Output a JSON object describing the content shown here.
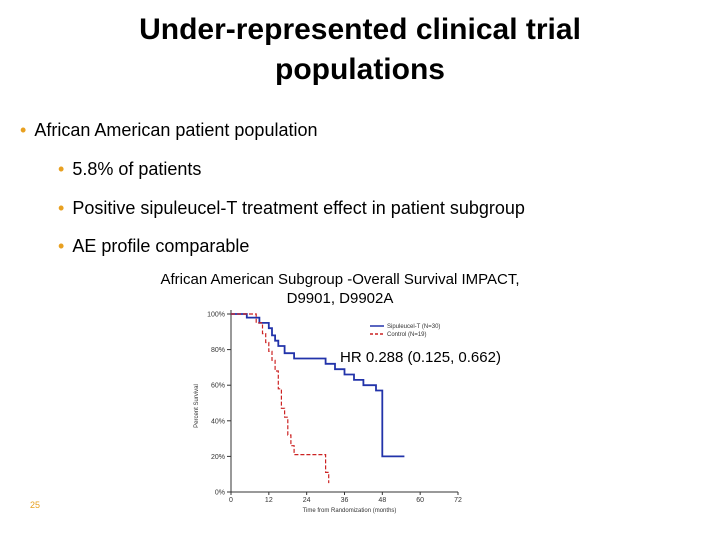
{
  "slide": {
    "title": "Under-represented clinical trial populations",
    "bullets": [
      "African American patient population",
      "5.8% of patients",
      "Positive sipuleucel-T treatment effect in patient subgroup",
      "AE profile comparable"
    ],
    "page_number": "25"
  },
  "chart_data": {
    "type": "line",
    "title": "African American Subgroup -Overall Survival IMPACT, D9901, D9902A",
    "annotation": "HR 0.288 (0.125, 0.662)",
    "xlabel": "Time from Randomization (months)",
    "ylabel": "Percent Survival",
    "xlim": [
      0,
      72
    ],
    "ylim": [
      0,
      100
    ],
    "x_ticks": [
      "0",
      "12",
      "24",
      "36",
      "48",
      "60",
      "72"
    ],
    "y_ticks": [
      "100%",
      "80%",
      "60%",
      "40%",
      "20%",
      "0%"
    ],
    "legend_position": "top-right",
    "series": [
      {
        "name": "Sipuleucel-T (N=30)",
        "color": "#2233aa",
        "style": "solid",
        "points": [
          [
            0,
            100
          ],
          [
            5,
            100
          ],
          [
            5,
            98
          ],
          [
            9,
            98
          ],
          [
            9,
            95
          ],
          [
            12,
            95
          ],
          [
            12,
            92
          ],
          [
            13,
            92
          ],
          [
            13,
            88
          ],
          [
            14,
            88
          ],
          [
            14,
            85
          ],
          [
            15,
            85
          ],
          [
            15,
            82
          ],
          [
            17,
            82
          ],
          [
            17,
            78
          ],
          [
            20,
            78
          ],
          [
            20,
            75
          ],
          [
            30,
            75
          ],
          [
            30,
            72
          ],
          [
            33,
            72
          ],
          [
            33,
            69
          ],
          [
            36,
            69
          ],
          [
            36,
            66
          ],
          [
            39,
            66
          ],
          [
            39,
            63
          ],
          [
            42,
            63
          ],
          [
            42,
            60
          ],
          [
            46,
            60
          ],
          [
            46,
            57
          ],
          [
            48,
            57
          ],
          [
            48,
            20
          ],
          [
            55,
            20
          ]
        ]
      },
      {
        "name": "Control (N=19)",
        "color": "#cc2222",
        "style": "dashed",
        "points": [
          [
            0,
            100
          ],
          [
            8,
            100
          ],
          [
            8,
            95
          ],
          [
            10,
            95
          ],
          [
            10,
            89
          ],
          [
            11,
            89
          ],
          [
            11,
            84
          ],
          [
            12,
            84
          ],
          [
            12,
            79
          ],
          [
            13,
            79
          ],
          [
            13,
            74
          ],
          [
            14,
            74
          ],
          [
            14,
            68
          ],
          [
            15,
            68
          ],
          [
            15,
            58
          ],
          [
            16,
            58
          ],
          [
            16,
            47
          ],
          [
            17,
            47
          ],
          [
            17,
            42
          ],
          [
            18,
            42
          ],
          [
            18,
            32
          ],
          [
            19,
            32
          ],
          [
            19,
            26
          ],
          [
            20,
            26
          ],
          [
            20,
            21
          ],
          [
            30,
            21
          ],
          [
            30,
            11
          ],
          [
            31,
            11
          ],
          [
            31,
            5
          ]
        ]
      }
    ]
  }
}
